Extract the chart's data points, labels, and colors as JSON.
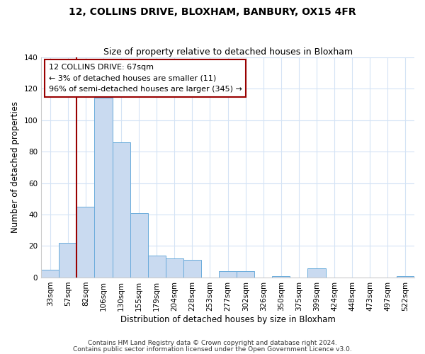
{
  "title": "12, COLLINS DRIVE, BLOXHAM, BANBURY, OX15 4FR",
  "subtitle": "Size of property relative to detached houses in Bloxham",
  "xlabel": "Distribution of detached houses by size in Bloxham",
  "ylabel": "Number of detached properties",
  "bar_labels": [
    "33sqm",
    "57sqm",
    "82sqm",
    "106sqm",
    "130sqm",
    "155sqm",
    "179sqm",
    "204sqm",
    "228sqm",
    "253sqm",
    "277sqm",
    "302sqm",
    "326sqm",
    "350sqm",
    "375sqm",
    "399sqm",
    "424sqm",
    "448sqm",
    "473sqm",
    "497sqm",
    "522sqm"
  ],
  "bar_values": [
    5,
    22,
    45,
    114,
    86,
    41,
    14,
    12,
    11,
    0,
    4,
    4,
    0,
    1,
    0,
    6,
    0,
    0,
    0,
    0,
    1
  ],
  "bar_color": "#c9daf0",
  "bar_edge_color": "#6aabdb",
  "vline_x_index": 1,
  "vline_color": "#990000",
  "ylim": [
    0,
    140
  ],
  "yticks": [
    0,
    20,
    40,
    60,
    80,
    100,
    120,
    140
  ],
  "annotation_title": "12 COLLINS DRIVE: 67sqm",
  "annotation_line1": "← 3% of detached houses are smaller (11)",
  "annotation_line2": "96% of semi-detached houses are larger (345) →",
  "footer_line1": "Contains HM Land Registry data © Crown copyright and database right 2024.",
  "footer_line2": "Contains public sector information licensed under the Open Government Licence v3.0.",
  "title_fontsize": 10,
  "subtitle_fontsize": 9,
  "axis_label_fontsize": 8.5,
  "tick_fontsize": 7.5,
  "annotation_fontsize": 8,
  "footer_fontsize": 6.5,
  "grid_color": "#d4e3f5",
  "fig_width": 6.0,
  "fig_height": 5.0,
  "dpi": 100
}
